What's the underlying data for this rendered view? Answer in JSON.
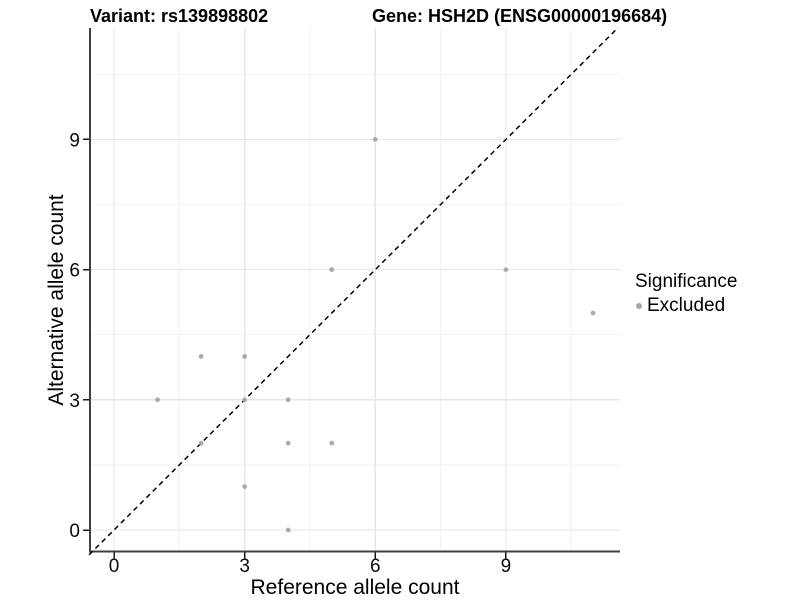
{
  "titles": {
    "variant": "Variant: rs139898802",
    "gene": "Gene: HSH2D (ENSG00000196684)"
  },
  "chart_data": {
    "type": "scatter",
    "title": "Variant: rs139898802 — Gene: HSH2D (ENSG00000196684)",
    "xlabel": "Reference allele count",
    "ylabel": "Alternative allele count",
    "x_ticks": [
      0,
      3,
      6,
      9
    ],
    "y_ticks": [
      0,
      3,
      6,
      9
    ],
    "x_minor_ticks": [
      1.5,
      4.5,
      7.5,
      10.5
    ],
    "y_minor_ticks": [
      1.5,
      4.5,
      7.5,
      10.5
    ],
    "xlim": [
      -0.55,
      11.62
    ],
    "ylim": [
      -0.52,
      11.58
    ],
    "grid": true,
    "reference_line": {
      "style": "dashed",
      "equation": "y = x"
    },
    "series": [
      {
        "name": "Excluded",
        "points": [
          [
            6,
            9
          ],
          [
            5,
            6
          ],
          [
            9,
            6
          ],
          [
            11,
            5
          ],
          [
            2,
            4
          ],
          [
            3,
            4
          ],
          [
            1,
            3
          ],
          [
            3,
            3
          ],
          [
            4,
            3
          ],
          [
            2,
            2
          ],
          [
            4,
            2
          ],
          [
            5,
            2
          ],
          [
            3,
            1
          ],
          [
            4,
            0
          ]
        ]
      }
    ],
    "legend": {
      "title": "Significance",
      "position": "right",
      "items": [
        {
          "label": "Excluded",
          "color": "#a6a6a6"
        }
      ]
    }
  },
  "colors": {
    "point": "#a6a6a6",
    "grid_major": "#e6e6e6",
    "grid_minor": "#f2f2f2",
    "axis_line": "#404040",
    "tick_mark": "#1a1a1a",
    "reference_line": "#000000",
    "text": "#000000",
    "background": "#ffffff"
  }
}
